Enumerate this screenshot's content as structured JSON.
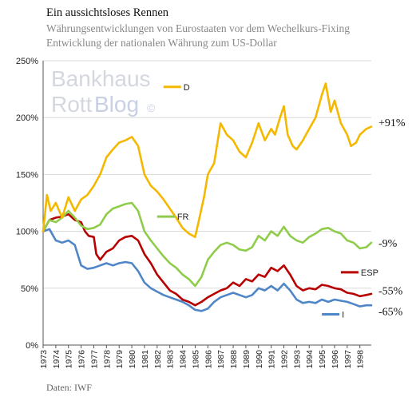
{
  "header": {
    "title": "Ein aussichtsloses Rennen",
    "subtitle1": "Währungsentwicklungen von Eurostaaten vor dem Wechelkurs-Fixing",
    "subtitle2": "Entwicklung der nationalen Währung zum US-Dollar"
  },
  "footer": {
    "source": "Daten: IWF"
  },
  "watermark": {
    "line1": "Bankhaus",
    "line2a": "Rott",
    "line2b": "Blog",
    "mark": "©"
  },
  "colors": {
    "D": "#f5b800",
    "FR": "#8fcc4a",
    "ESP": "#b80000",
    "I": "#4f86c8"
  },
  "chart_data": {
    "type": "line",
    "title": "Ein aussichtsloses Rennen",
    "xlabel": "",
    "ylabel": "",
    "xlim": [
      1973,
      1998.9
    ],
    "ylim": [
      0,
      250
    ],
    "grid": true,
    "ytick_values": [
      0,
      50,
      100,
      150,
      200,
      250
    ],
    "ytick_labels": [
      "0%",
      "50%",
      "100%",
      "150%",
      "200%",
      "250%"
    ],
    "xtick_values": [
      1973,
      1974,
      1975,
      1976,
      1977,
      1978,
      1979,
      1980,
      1981,
      1982,
      1983,
      1984,
      1985,
      1986,
      1987,
      1988,
      1989,
      1990,
      1991,
      1992,
      1993,
      1994,
      1995,
      1996,
      1997,
      1998
    ],
    "xtick_labels": [
      "1973",
      "1974",
      "1975",
      "1976",
      "1977",
      "1978",
      "1979",
      "1980",
      "1981",
      "1982",
      "1983",
      "1984",
      "1985",
      "1986",
      "1987",
      "1988",
      "1989",
      "1990",
      "1991",
      "1992",
      "1993",
      "1994",
      "1995",
      "1996",
      "1997",
      "1998"
    ],
    "legend_placement": "inline",
    "series": [
      {
        "name": "D",
        "end_label": "+91%",
        "x": [
          1973,
          1973.3,
          1973.6,
          1974,
          1974.5,
          1975,
          1975.5,
          1976,
          1976.5,
          1977,
          1977.5,
          1978,
          1978.5,
          1979,
          1979.5,
          1980,
          1980.5,
          1981,
          1981.5,
          1982,
          1982.5,
          1983,
          1983.5,
          1984,
          1984.5,
          1985,
          1985.3,
          1985.7,
          1986,
          1986.5,
          1987,
          1987.5,
          1988,
          1988.5,
          1989,
          1989.5,
          1990,
          1990.5,
          1991,
          1991.3,
          1991.7,
          1992,
          1992.3,
          1992.7,
          1993,
          1993.5,
          1994,
          1994.5,
          1995,
          1995.3,
          1995.7,
          1996,
          1996.5,
          1997,
          1997.3,
          1997.7,
          1998,
          1998.5,
          1998.9
        ],
        "y": [
          100,
          132,
          118,
          125,
          112,
          130,
          118,
          128,
          132,
          140,
          150,
          165,
          172,
          178,
          180,
          183,
          175,
          150,
          140,
          135,
          128,
          120,
          112,
          103,
          98,
          95,
          110,
          130,
          150,
          160,
          195,
          185,
          180,
          170,
          165,
          178,
          195,
          180,
          190,
          185,
          200,
          210,
          185,
          175,
          172,
          180,
          190,
          200,
          220,
          230,
          205,
          215,
          195,
          185,
          175,
          178,
          185,
          190,
          192
        ]
      },
      {
        "name": "FR",
        "end_label": "-9%",
        "x": [
          1973,
          1973.5,
          1974,
          1974.5,
          1975,
          1975.5,
          1976,
          1976.5,
          1977,
          1977.5,
          1978,
          1978.5,
          1979,
          1979.5,
          1980,
          1980.5,
          1981,
          1981.5,
          1982,
          1982.5,
          1983,
          1983.5,
          1984,
          1984.5,
          1985,
          1985.5,
          1986,
          1986.5,
          1987,
          1987.5,
          1988,
          1988.5,
          1989,
          1989.5,
          1990,
          1990.5,
          1991,
          1991.5,
          1992,
          1992.5,
          1993,
          1993.5,
          1994,
          1994.5,
          1995,
          1995.5,
          1996,
          1996.5,
          1997,
          1997.5,
          1998,
          1998.5,
          1998.9
        ],
        "y": [
          100,
          110,
          108,
          112,
          118,
          112,
          105,
          102,
          103,
          106,
          115,
          120,
          122,
          124,
          125,
          118,
          100,
          92,
          85,
          78,
          72,
          68,
          62,
          58,
          52,
          60,
          75,
          82,
          88,
          90,
          88,
          84,
          83,
          86,
          96,
          92,
          100,
          96,
          104,
          96,
          92,
          90,
          95,
          98,
          102,
          103,
          100,
          98,
          92,
          90,
          85,
          86,
          90
        ]
      },
      {
        "name": "ESP",
        "end_label": "-55%",
        "x": [
          1973,
          1973.5,
          1974,
          1974.5,
          1975,
          1975.5,
          1976,
          1976.3,
          1976.6,
          1977,
          1977.2,
          1977.5,
          1978,
          1978.5,
          1979,
          1979.5,
          1980,
          1980.5,
          1981,
          1981.5,
          1982,
          1982.5,
          1983,
          1983.5,
          1984,
          1984.5,
          1985,
          1985.5,
          1986,
          1986.5,
          1987,
          1987.5,
          1988,
          1988.5,
          1989,
          1989.5,
          1990,
          1990.5,
          1991,
          1991.5,
          1992,
          1992.5,
          1993,
          1993.5,
          1994,
          1994.5,
          1995,
          1995.5,
          1996,
          1996.5,
          1997,
          1997.5,
          1998,
          1998.5,
          1998.9
        ],
        "y": [
          100,
          110,
          112,
          113,
          115,
          110,
          108,
          100,
          96,
          95,
          80,
          75,
          82,
          85,
          92,
          95,
          96,
          92,
          80,
          72,
          62,
          55,
          48,
          45,
          40,
          38,
          35,
          38,
          42,
          45,
          48,
          50,
          55,
          52,
          58,
          56,
          62,
          60,
          68,
          65,
          70,
          62,
          52,
          48,
          50,
          49,
          53,
          52,
          50,
          49,
          46,
          45,
          43,
          44,
          45
        ]
      },
      {
        "name": "I",
        "end_label": "-65%",
        "x": [
          1973,
          1973.5,
          1974,
          1974.5,
          1975,
          1975.5,
          1976,
          1976.5,
          1977,
          1977.5,
          1978,
          1978.5,
          1979,
          1979.5,
          1980,
          1980.5,
          1981,
          1981.5,
          1982,
          1982.5,
          1983,
          1983.5,
          1984,
          1984.5,
          1985,
          1985.5,
          1986,
          1986.5,
          1987,
          1987.5,
          1988,
          1988.5,
          1989,
          1989.5,
          1990,
          1990.5,
          1991,
          1991.5,
          1992,
          1992.5,
          1993,
          1993.5,
          1994,
          1994.5,
          1995,
          1995.5,
          1996,
          1996.5,
          1997,
          1997.5,
          1998,
          1998.5,
          1998.9
        ],
        "y": [
          100,
          102,
          92,
          90,
          92,
          88,
          70,
          67,
          68,
          70,
          72,
          70,
          72,
          73,
          72,
          65,
          55,
          50,
          47,
          44,
          42,
          40,
          38,
          35,
          31,
          30,
          32,
          38,
          42,
          44,
          46,
          44,
          42,
          44,
          50,
          48,
          52,
          48,
          54,
          48,
          40,
          37,
          38,
          37,
          40,
          38,
          40,
          39,
          38,
          36,
          34,
          35,
          35
        ]
      }
    ]
  }
}
